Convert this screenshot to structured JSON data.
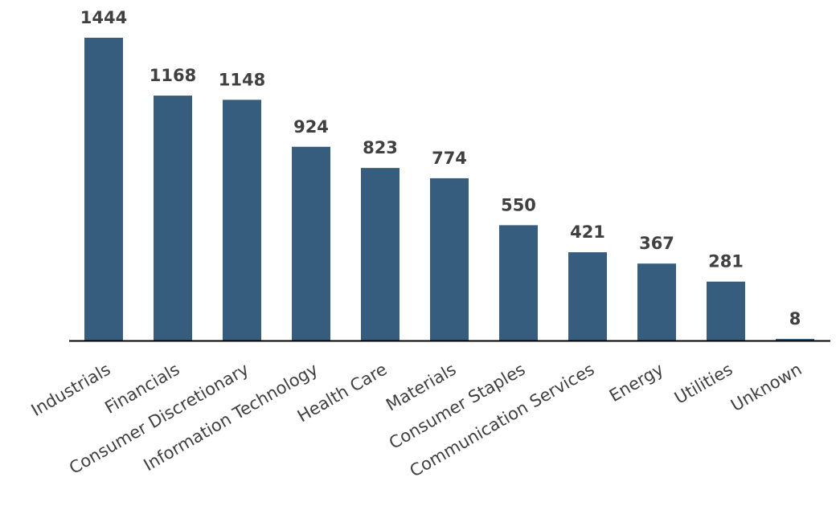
{
  "chart_data": {
    "type": "bar",
    "categories": [
      "Industrials",
      "Financials",
      "Consumer Discretionary",
      "Information Technology",
      "Health Care",
      "Materials",
      "Consumer Staples",
      "Communication Services",
      "Energy",
      "Utilities",
      "Unknown"
    ],
    "values": [
      1444,
      1168,
      1148,
      924,
      823,
      774,
      550,
      421,
      367,
      281,
      8
    ],
    "title": "",
    "xlabel": "",
    "ylabel": "",
    "ylim": [
      0,
      1444
    ],
    "grid": false,
    "legend": "none",
    "data_labels": true,
    "bar_color": "#365d7e",
    "axis_color": "#000000",
    "text_color": "#404040"
  }
}
